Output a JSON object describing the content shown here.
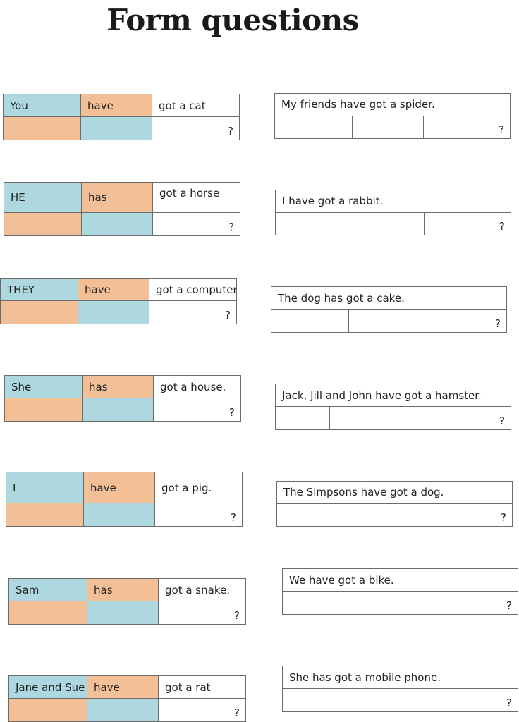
{
  "title": "Form questions",
  "question_mark": "?",
  "left_items": [
    {
      "subject": "You",
      "verb": "have",
      "rest": "got a cat"
    },
    {
      "subject": "HE",
      "verb": "has",
      "rest": "got a horse"
    },
    {
      "subject": "THEY",
      "verb": "have",
      "rest": "got a computer."
    },
    {
      "subject": "She",
      "verb": "has",
      "rest": "got a house."
    },
    {
      "subject": "I",
      "verb": "have",
      "rest": "got a pig."
    },
    {
      "subject": "Sam",
      "verb": "has",
      "rest": "got a snake."
    },
    {
      "subject": "Jane and Sue",
      "verb": "have",
      "rest": "got a rat"
    }
  ],
  "right_items": [
    {
      "sentence": "My friends have got a spider."
    },
    {
      "sentence": "I have got a rabbit."
    },
    {
      "sentence": "The dog has got a cake."
    },
    {
      "sentence": "Jack, Jill and John have got a hamster."
    },
    {
      "sentence": "The Simpsons have got a dog."
    },
    {
      "sentence": "We have got a bike."
    },
    {
      "sentence": "She has got a mobile phone."
    }
  ],
  "colors": {
    "subject": "#aed8df",
    "verb": "#f3bf97"
  }
}
